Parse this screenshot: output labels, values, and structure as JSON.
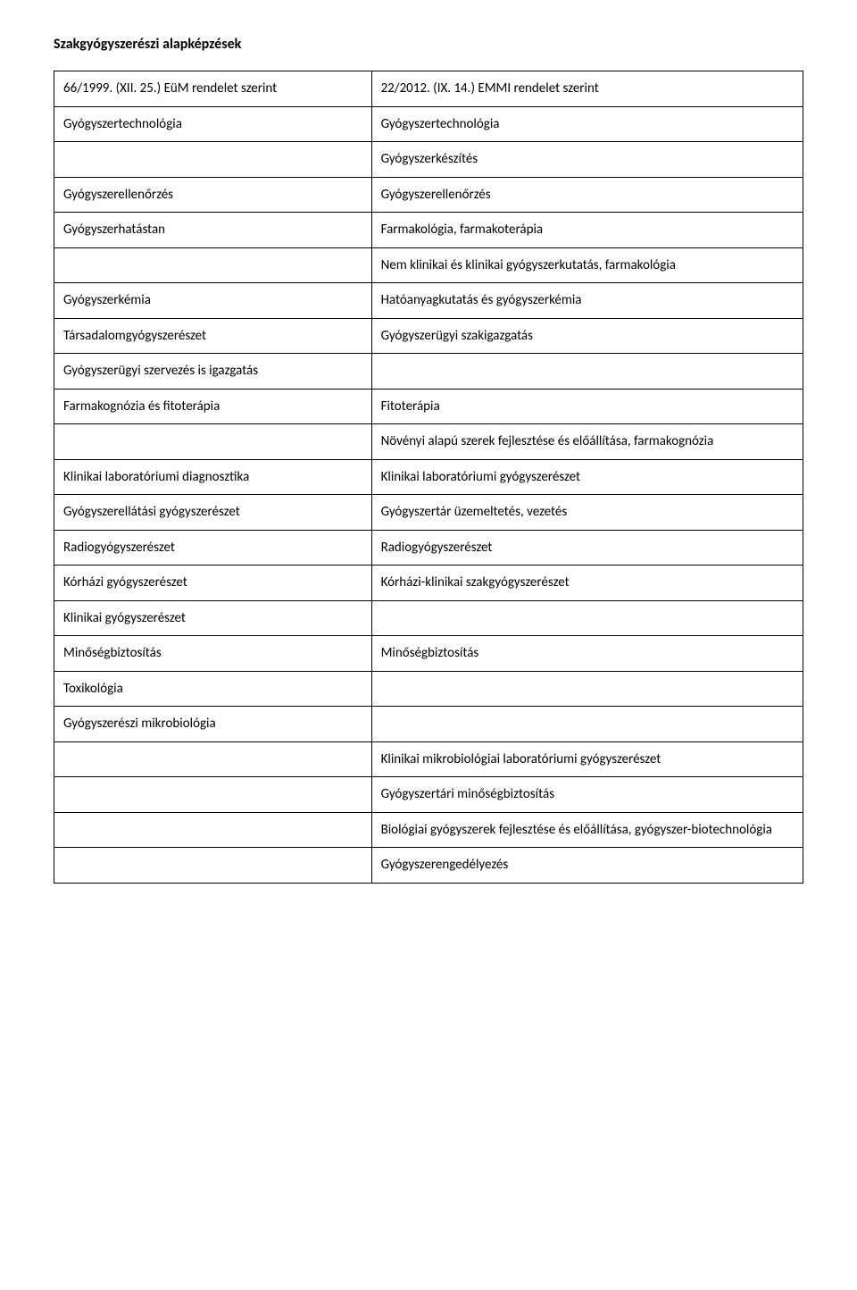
{
  "title": "Szakgyógyszerészi alapképzések",
  "table": {
    "columns": {
      "left_width": "42%",
      "right_width": "58%"
    },
    "rows": [
      {
        "left": "66/1999. (XII. 25.) EüM rendelet szerint",
        "right": "22/2012. (IX. 14.) EMMI rendelet szerint"
      },
      {
        "left": "Gyógyszertechnológia",
        "right": "Gyógyszertechnológia"
      },
      {
        "left": "",
        "right": "Gyógyszerkészítés"
      },
      {
        "left": "Gyógyszerellenőrzés",
        "right": "Gyógyszerellenőrzés"
      },
      {
        "left": "Gyógyszerhatástan",
        "right": "Farmakológia, farmakoterápia"
      },
      {
        "left": "",
        "right": "Nem klinikai és klinikai gyógyszerkutatás, farmakológia"
      },
      {
        "left": "Gyógyszerkémia",
        "right": "Hatóanyagkutatás és gyógyszerkémia"
      },
      {
        "left": "Társadalomgyógyszerészet",
        "right": "Gyógyszerügyi szakigazgatás"
      },
      {
        "left": "Gyógyszerügyi szervezés is igazgatás",
        "right": ""
      },
      {
        "left": "Farmakognózia és fitoterápia",
        "right": "Fitoterápia"
      },
      {
        "left": "",
        "right": "Növényi alapú szerek fejlesztése és előállítása, farmakognózia"
      },
      {
        "left": "Klinikai laboratóriumi diagnosztika",
        "right": "Klinikai laboratóriumi gyógyszerészet"
      },
      {
        "left": "Gyógyszerellátási gyógyszerészet",
        "right": "Gyógyszertár üzemeltetés, vezetés"
      },
      {
        "left": "Radiogyógyszerészet",
        "right": "Radiogyógyszerészet"
      },
      {
        "left": "Kórházi gyógyszerészet",
        "right": "Kórházi-klinikai szakgyógyszerészet"
      },
      {
        "left": "Klinikai gyógyszerészet",
        "right": ""
      },
      {
        "left": "Minőségbiztosítás",
        "right": "Minőségbiztosítás"
      },
      {
        "left": "Toxikológia",
        "right": ""
      },
      {
        "left": "Gyógyszerészi mikrobiológia",
        "right": ""
      },
      {
        "left": "",
        "right": "Klinikai mikrobiológiai laboratóriumi gyógyszerészet"
      },
      {
        "left": "",
        "right": "Gyógyszertári minőségbiztosítás"
      },
      {
        "left": "",
        "right": "Biológiai gyógyszerek fejlesztése és előállítása, gyógyszer-biotechnológia"
      },
      {
        "left": "",
        "right": "Gyógyszerengedélyezés"
      }
    ]
  },
  "styles": {
    "background_color": "#ffffff",
    "text_color": "#000000",
    "border_color": "#000000",
    "title_fontsize": 16,
    "title_fontweight": "bold",
    "cell_fontsize": 15,
    "font_family": "Calibri"
  }
}
